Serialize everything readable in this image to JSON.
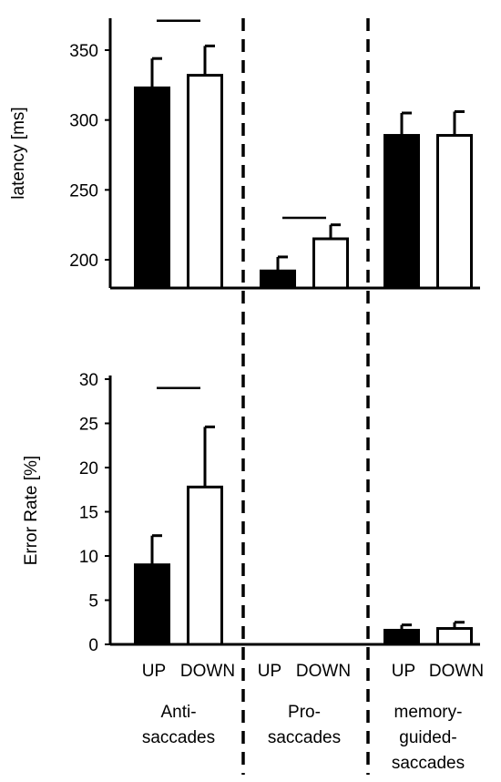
{
  "chart_data": [
    {
      "type": "bar",
      "panel": "latency",
      "ylabel": "latency [ms]",
      "ylim": [
        180,
        375
      ],
      "yticks": [
        200,
        250,
        300,
        350
      ],
      "groups": [
        "Anti-saccades",
        "Pro-saccades",
        "memory-guided-saccades"
      ],
      "conditions": [
        "UP",
        "DOWN"
      ],
      "series": [
        {
          "name": "UP",
          "values": [
            323,
            192,
            289
          ],
          "errors": [
            21,
            10,
            16
          ],
          "color": "#000000"
        },
        {
          "name": "DOWN",
          "values": [
            332,
            215,
            289
          ],
          "errors": [
            21,
            10,
            17
          ],
          "color": "#ffffff"
        }
      ],
      "significance": [
        {
          "group": 0,
          "y": 371
        },
        {
          "group": 1,
          "y": 230
        }
      ]
    },
    {
      "type": "bar",
      "panel": "error-rate",
      "ylabel": "Error Rate [%]",
      "ylim": [
        0,
        30
      ],
      "yticks": [
        0,
        5,
        10,
        15,
        20,
        25,
        30
      ],
      "groups": [
        "Anti-saccades",
        "Pro-saccades",
        "memory-guided-saccades"
      ],
      "conditions": [
        "UP",
        "DOWN"
      ],
      "series": [
        {
          "name": "UP",
          "values": [
            9,
            0,
            1.6
          ],
          "errors": [
            3.3,
            0,
            0.6
          ],
          "color": "#000000"
        },
        {
          "name": "DOWN",
          "values": [
            17.8,
            0,
            1.8
          ],
          "errors": [
            6.8,
            0,
            0.7
          ],
          "color": "#ffffff"
        }
      ],
      "significance": [
        {
          "group": 0,
          "y": 29
        }
      ]
    }
  ],
  "labels": {
    "conditions": [
      [
        "UP",
        "DOWN"
      ],
      [
        "UP",
        "DOWN"
      ],
      [
        "UP",
        "DOWN"
      ]
    ],
    "groups": [
      [
        "Anti-",
        "saccades"
      ],
      [
        "Pro-",
        "saccades"
      ],
      [
        "memory-",
        "guided-",
        "saccades"
      ]
    ]
  }
}
